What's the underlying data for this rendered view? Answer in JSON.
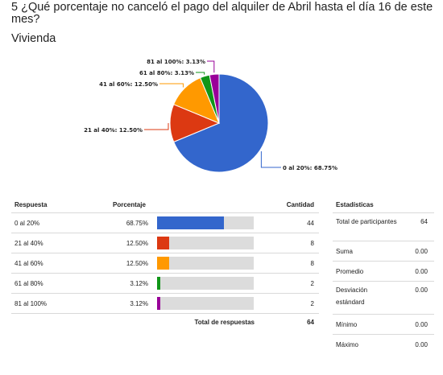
{
  "question": {
    "title": "5 ¿Qué porcentaje no canceló el pago del alquiler de Abril hasta el día 16 de este mes?",
    "subtitle": "Vivienda"
  },
  "chart_data": {
    "type": "pie",
    "slices": [
      {
        "label": "0 al 20%: 68.75%",
        "value": 68.75,
        "color": "#3366cc"
      },
      {
        "label": "21 al 40%: 12.50%",
        "value": 12.5,
        "color": "#dc3912"
      },
      {
        "label": "41 al 60%: 12.50%",
        "value": 12.5,
        "color": "#ff9900"
      },
      {
        "label": "61 al 80%: 3.13%",
        "value": 3.13,
        "color": "#109618"
      },
      {
        "label": "81 al 100%: 3.13%",
        "value": 3.13,
        "color": "#990099"
      }
    ]
  },
  "table": {
    "headers": {
      "respuesta": "Respuesta",
      "porcentaje": "Porcentaje",
      "cantidad": "Cantidad"
    },
    "rows": [
      {
        "respuesta": "0 al 20%",
        "porcentaje": "68.75%",
        "fraction": 0.6875,
        "cantidad": "44",
        "color": "#3366cc"
      },
      {
        "respuesta": "21 al 40%",
        "porcentaje": "12.50%",
        "fraction": 0.125,
        "cantidad": "8",
        "color": "#dc3912"
      },
      {
        "respuesta": "41 al 60%",
        "porcentaje": "12.50%",
        "fraction": 0.125,
        "cantidad": "8",
        "color": "#ff9900"
      },
      {
        "respuesta": "61 al 80%",
        "porcentaje": "3.12%",
        "fraction": 0.0312,
        "cantidad": "2",
        "color": "#109618"
      },
      {
        "respuesta": "81 al 100%",
        "porcentaje": "3.12%",
        "fraction": 0.0312,
        "cantidad": "2",
        "color": "#990099"
      }
    ],
    "total_label": "Total de respuestas",
    "total_value": "64"
  },
  "stats": {
    "header": "Estadísticas",
    "rows": [
      {
        "label": "Total de participantes",
        "value": "64"
      },
      {
        "label": "Suma",
        "value": "0.00"
      },
      {
        "label": "Promedio",
        "value": "0.00"
      },
      {
        "label": "Desviación estándard",
        "value": "0.00"
      },
      {
        "label": "Mínimo",
        "value": "0.00"
      },
      {
        "label": "Máximo",
        "value": "0.00"
      }
    ]
  }
}
